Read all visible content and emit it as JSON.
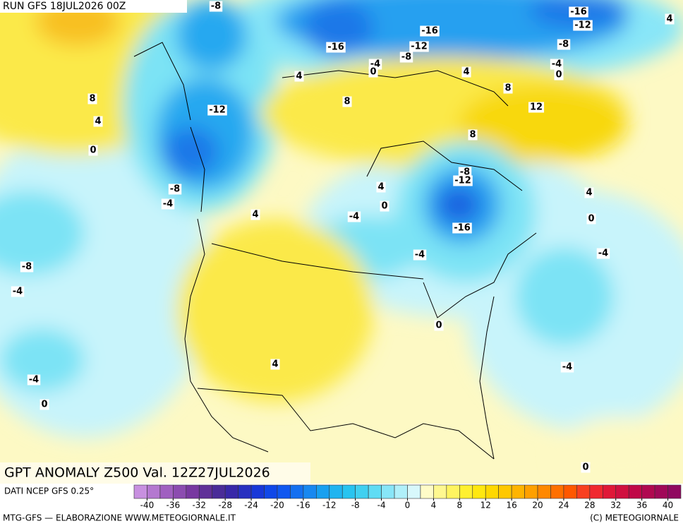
{
  "header": {
    "run": "RUN GFS 18JUL2026 00Z"
  },
  "map": {
    "title": "GPT ANOMALY Z500 Val. 12Z27JUL2026",
    "contour_labels": [
      -8,
      -16,
      -12,
      4,
      -16,
      -16,
      -12,
      -8,
      -8,
      -4,
      0,
      -4,
      0,
      4,
      4,
      8,
      8,
      8,
      -12,
      12,
      4,
      8,
      0,
      -8,
      -12,
      4,
      -8,
      0,
      4,
      -4,
      4,
      -4,
      0,
      -16,
      -4,
      -4,
      -8,
      -4,
      0,
      4,
      -4,
      -4,
      0,
      0
    ]
  },
  "legend": {
    "source": "DATI NCEP GFS 0.25°",
    "colors": [
      "#c890e0",
      "#b478d0",
      "#a060c0",
      "#8c4cb0",
      "#7838a0",
      "#603098",
      "#4a2c98",
      "#3828a8",
      "#2830c0",
      "#1838d8",
      "#1048e8",
      "#1058f0",
      "#1470f0",
      "#1888f0",
      "#18a0f0",
      "#20b4f0",
      "#28c4f0",
      "#40d0f0",
      "#60dcf4",
      "#88e6f8",
      "#b0f0fa",
      "#d8f8fc",
      "#fffcc8",
      "#fff890",
      "#fff460",
      "#fff030",
      "#ffe810",
      "#ffd800",
      "#ffc800",
      "#ffb400",
      "#ffa000",
      "#ff8800",
      "#ff7000",
      "#ff5800",
      "#f84020",
      "#f02830",
      "#e01838",
      "#d01040",
      "#c00848",
      "#b00850",
      "#a00858",
      "#900860"
    ],
    "ticks": [
      -40,
      -36,
      -32,
      -28,
      -24,
      -20,
      -16,
      -12,
      -8,
      -4,
      0,
      4,
      8,
      12,
      16,
      20,
      24,
      28,
      32,
      36,
      40
    ]
  },
  "footer": {
    "left": "MTG-GFS — ELABORAZIONE WWW.METEOGIORNALE.IT",
    "right": "(C) METEOGIORNALE"
  }
}
